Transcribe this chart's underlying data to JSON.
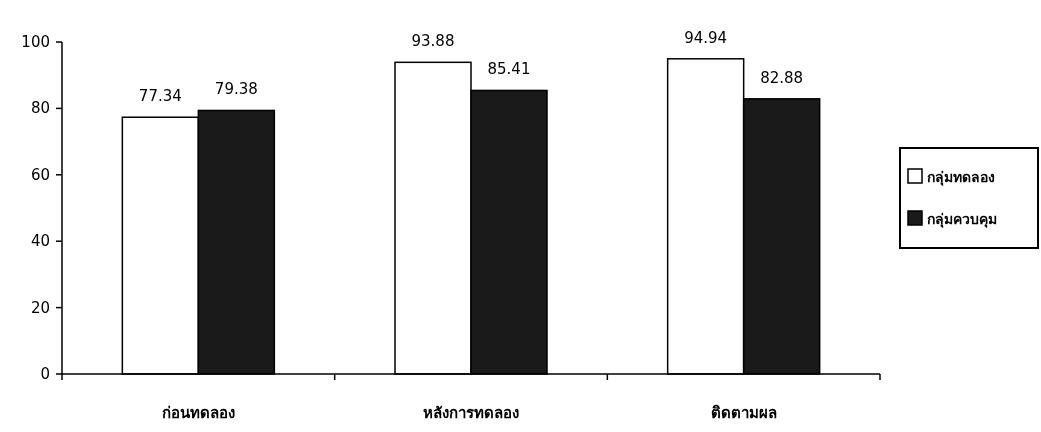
{
  "chart_data": {
    "type": "bar",
    "categories": [
      "ก่อนทดลอง",
      "หลังการทดลอง",
      "ติดตามผล"
    ],
    "series": [
      {
        "name": "กลุ่มทดลอง",
        "color": "#ffffff",
        "values": [
          77.34,
          93.88,
          94.94
        ]
      },
      {
        "name": "กลุ่มควบคุม",
        "color": "#1a1a1a",
        "values": [
          79.38,
          85.41,
          82.88
        ]
      }
    ],
    "ylim": [
      0,
      100
    ],
    "yticks": [
      0,
      20,
      40,
      60,
      80,
      100
    ],
    "data_labels": true,
    "legend": "right",
    "grid": false
  }
}
